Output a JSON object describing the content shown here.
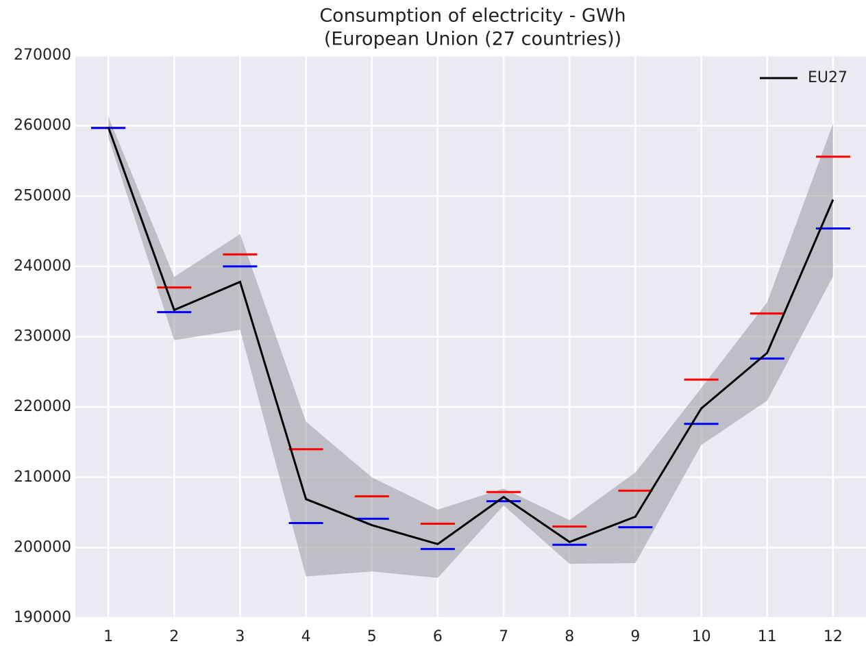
{
  "chart_data": {
    "type": "line",
    "title": [
      "Consumption of electricity - GWh",
      "(European Union (27 countries))"
    ],
    "x": [
      1,
      2,
      3,
      4,
      5,
      6,
      7,
      8,
      9,
      10,
      11,
      12
    ],
    "series": [
      {
        "name": "EU27",
        "color": "#000000",
        "values": [
          259800,
          233800,
          237800,
          206900,
          203200,
          200500,
          207200,
          200800,
          204400,
          219800,
          227700,
          249500
        ]
      }
    ],
    "band": {
      "color": "#a0a0a8",
      "upper": [
        261300,
        238500,
        244600,
        217900,
        210000,
        205400,
        208400,
        203900,
        210700,
        222700,
        234900,
        260300
      ],
      "lower": [
        258400,
        229500,
        231000,
        195900,
        196600,
        195700,
        206000,
        197700,
        197800,
        214600,
        220900,
        238600
      ]
    },
    "markers": [
      {
        "color": "#ff0000",
        "values": [
          259700,
          237000,
          241700,
          214000,
          207300,
          203400,
          207900,
          203000,
          208100,
          223900,
          233300,
          255600
        ]
      },
      {
        "color": "#0000ff",
        "values": [
          259700,
          233500,
          240000,
          203500,
          204100,
          199800,
          206600,
          200400,
          202900,
          217600,
          226900,
          245400
        ]
      }
    ],
    "xlim": [
      0.5,
      12.5
    ],
    "xticks": [
      1,
      2,
      3,
      4,
      5,
      6,
      7,
      8,
      9,
      10,
      11,
      12
    ],
    "ylim": [
      190000,
      270000
    ],
    "yticks": [
      190000,
      200000,
      210000,
      220000,
      230000,
      240000,
      250000,
      260000,
      270000
    ],
    "grid": true,
    "legend": "upper right"
  }
}
